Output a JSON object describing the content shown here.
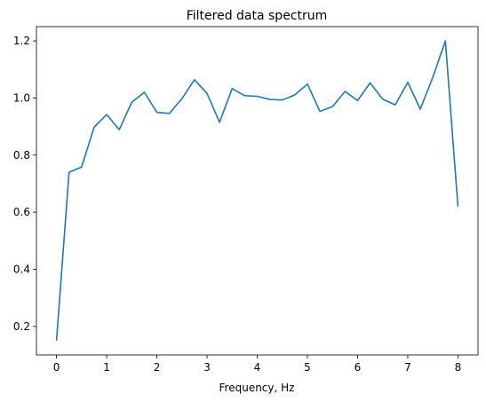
{
  "chart_data": {
    "type": "line",
    "title": "Filtered data spectrum",
    "xlabel": "Frequency, Hz",
    "ylabel": "",
    "xlim": [
      -0.4,
      8.4
    ],
    "ylim": [
      0.1,
      1.25
    ],
    "xticks": [
      0,
      1,
      2,
      3,
      4,
      5,
      6,
      7,
      8
    ],
    "yticks": [
      0.2,
      0.4,
      0.6,
      0.8,
      1.0,
      1.2
    ],
    "xtick_labels": [
      "0",
      "1",
      "2",
      "3",
      "4",
      "5",
      "6",
      "7",
      "8"
    ],
    "ytick_labels": [
      "0.2",
      "0.4",
      "0.6",
      "0.8",
      "1.0",
      "1.2"
    ],
    "grid": false,
    "series": [
      {
        "color": "#1f77b4",
        "x": [
          0,
          0.25,
          0.5,
          0.75,
          1.0,
          1.25,
          1.5,
          1.75,
          2.0,
          2.25,
          2.5,
          2.75,
          3.0,
          3.25,
          3.5,
          3.75,
          4.0,
          4.25,
          4.5,
          4.75,
          5.0,
          5.25,
          5.5,
          5.75,
          6.0,
          6.25,
          6.5,
          6.75,
          7.0,
          7.25,
          7.5,
          7.75,
          8.0
        ],
        "y": [
          0.15,
          0.74,
          0.758,
          0.898,
          0.942,
          0.889,
          0.985,
          1.02,
          0.95,
          0.946,
          0.998,
          1.064,
          1.016,
          0.915,
          1.033,
          1.008,
          1.006,
          0.995,
          0.993,
          1.011,
          1.049,
          0.953,
          0.97,
          1.023,
          0.991,
          1.053,
          0.996,
          0.976,
          1.055,
          0.961,
          1.073,
          1.2,
          0.62
        ]
      }
    ]
  }
}
